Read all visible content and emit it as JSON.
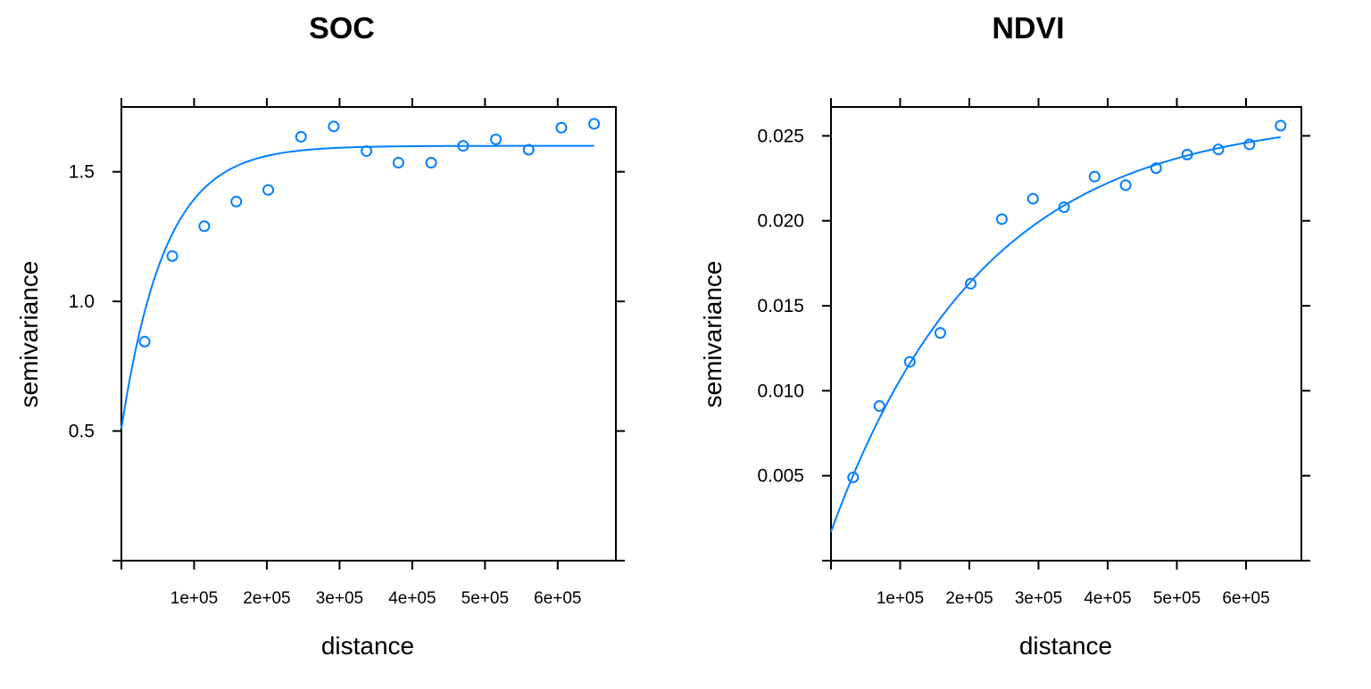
{
  "style": {
    "series_color": "#0080ff",
    "axis_color": "#000000",
    "background": "#ffffff"
  },
  "chart_data": [
    {
      "type": "scatter",
      "title": "SOC",
      "xlabel": "distance",
      "ylabel": "semivariance",
      "xlim": [
        0,
        680000
      ],
      "ylim": [
        0,
        1.75
      ],
      "x_ticks": [
        100000,
        200000,
        300000,
        400000,
        500000,
        600000
      ],
      "x_tick_labels": [
        "1e+05",
        "2e+05",
        "3e+05",
        "4e+05",
        "5e+05",
        "6e+05"
      ],
      "x_ticks_top": [
        100000,
        200000,
        300000,
        400000,
        500000,
        600000
      ],
      "y_ticks": [
        0.5,
        1.0,
        1.5
      ],
      "y_tick_labels": [
        "0.5",
        "1.0",
        "1.5"
      ],
      "y_ticks_right": [
        0,
        0.5,
        1.0,
        1.5
      ],
      "points": {
        "x": [
          32000,
          70000,
          114000,
          158000,
          202000,
          247000,
          292000,
          337000,
          381000,
          426000,
          470000,
          515000,
          560000,
          605000,
          650000
        ],
        "y": [
          0.845,
          1.175,
          1.29,
          1.385,
          1.43,
          1.635,
          1.675,
          1.58,
          1.535,
          1.535,
          1.6,
          1.625,
          1.585,
          1.67,
          1.685
        ]
      },
      "fit_model": {
        "kind": "exponential",
        "nugget": 0.51,
        "partial_sill": 1.09,
        "range": 60000,
        "x_max": 650000
      },
      "grid": false,
      "legend": "none"
    },
    {
      "type": "scatter",
      "title": "NDVI",
      "xlabel": "distance",
      "ylabel": "semivariance",
      "xlim": [
        0,
        680000
      ],
      "ylim": [
        0,
        0.0267
      ],
      "x_ticks": [
        100000,
        200000,
        300000,
        400000,
        500000,
        600000
      ],
      "x_tick_labels": [
        "1e+05",
        "2e+05",
        "3e+05",
        "4e+05",
        "5e+05",
        "6e+05"
      ],
      "x_ticks_top": [
        100000,
        200000,
        300000,
        400000,
        500000,
        600000
      ],
      "y_ticks": [
        0.005,
        0.01,
        0.015,
        0.02,
        0.025
      ],
      "y_tick_labels": [
        "0.005",
        "0.010",
        "0.015",
        "0.020",
        "0.025"
      ],
      "y_ticks_right": [
        0,
        0.005,
        0.01,
        0.015,
        0.02,
        0.025
      ],
      "points": {
        "x": [
          32000,
          70000,
          114000,
          158000,
          202000,
          247000,
          292000,
          337000,
          381000,
          426000,
          470000,
          515000,
          560000,
          605000,
          650000
        ],
        "y": [
          0.0049,
          0.0091,
          0.0117,
          0.0134,
          0.0163,
          0.0201,
          0.0213,
          0.0208,
          0.0226,
          0.0221,
          0.0231,
          0.0239,
          0.0242,
          0.0245,
          0.0256
        ]
      },
      "fit_model": {
        "kind": "exponential",
        "nugget": 0.0017,
        "partial_sill": 0.0245,
        "range": 220000,
        "x_max": 650000
      },
      "grid": false,
      "legend": "none"
    }
  ]
}
